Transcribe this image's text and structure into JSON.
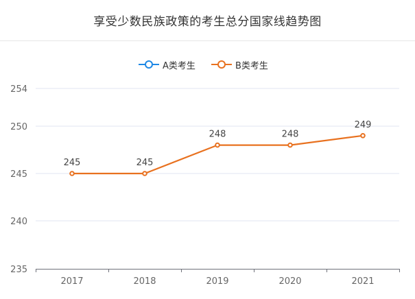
{
  "chart_data": {
    "type": "line",
    "title": "享受少数民族政策的考生总分国家线趋势图",
    "categories": [
      "2017",
      "2018",
      "2019",
      "2020",
      "2021"
    ],
    "series": [
      {
        "name": "A类考生",
        "color": "#1e88e5",
        "values": [
          null,
          null,
          null,
          null,
          null
        ]
      },
      {
        "name": "B类考生",
        "color": "#e8711f",
        "values": [
          245,
          245,
          248,
          248,
          249
        ]
      }
    ],
    "y_ticks": [
      "254",
      "250",
      "245",
      "240",
      "235"
    ],
    "ylim": [
      235,
      254
    ],
    "grid": true,
    "legend_position": "top-center",
    "xlabel": "",
    "ylabel": ""
  }
}
